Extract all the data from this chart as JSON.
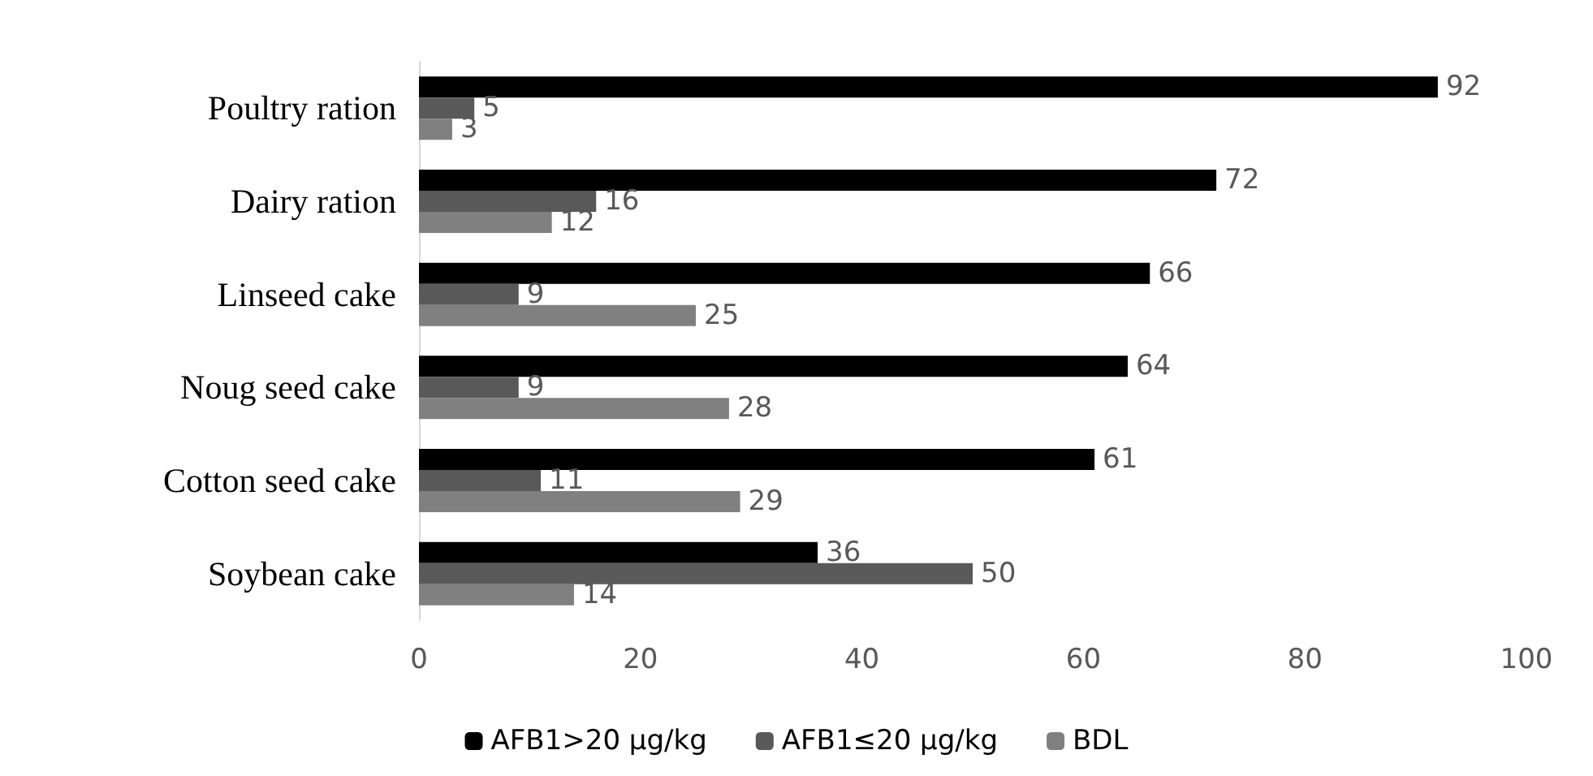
{
  "chart_data": {
    "type": "bar",
    "orientation": "horizontal",
    "categories": [
      "Poultry ration",
      "Dairy ration",
      "Linseed cake",
      "Noug seed cake",
      "Cotton seed cake",
      "Soybean cake"
    ],
    "series": [
      {
        "name": "AFB1>20 µg/kg",
        "color": "#000000",
        "values": [
          92,
          72,
          66,
          64,
          61,
          36
        ]
      },
      {
        "name": "AFB1≤20 µg/kg",
        "color": "#595959",
        "values": [
          5,
          16,
          9,
          9,
          11,
          50
        ]
      },
      {
        "name": "BDL",
        "color": "#808080",
        "values": [
          3,
          12,
          25,
          28,
          29,
          14
        ]
      }
    ],
    "xlim": [
      0,
      100
    ],
    "xticks": [
      0,
      20,
      40,
      60,
      80,
      100
    ],
    "grid": false,
    "legend": "bottom",
    "data_labels": true
  }
}
